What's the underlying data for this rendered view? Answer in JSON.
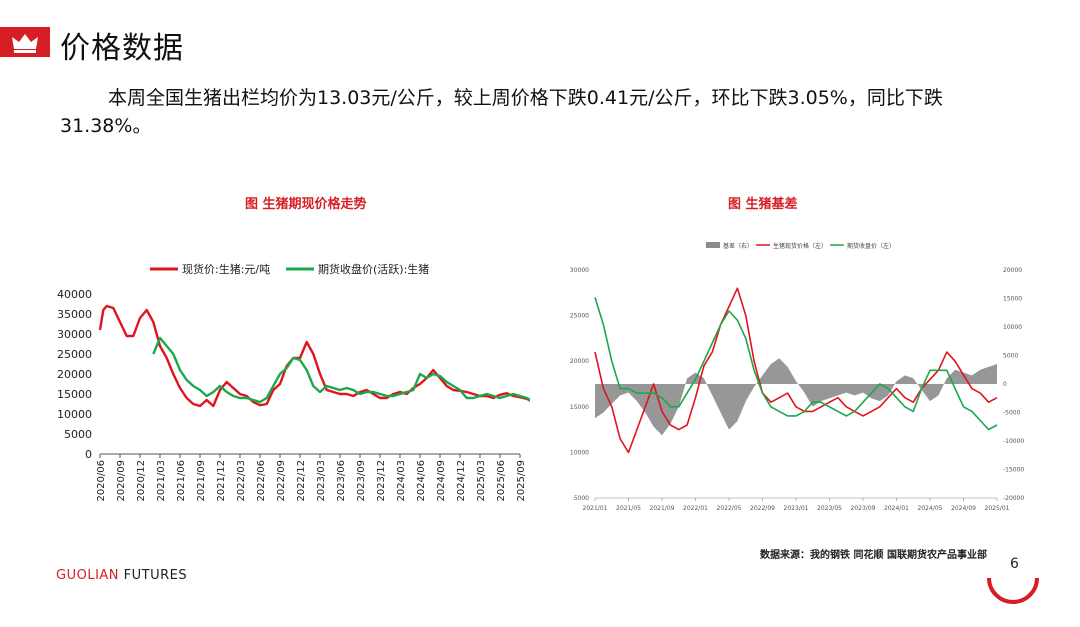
{
  "header": {
    "title": "价格数据"
  },
  "summary": "本周全国生猪出栏均价为13.03元/公斤，较上周价格下跌0.41元/公斤，环比下跌3.05%，同比下跌31.38%。",
  "footer": {
    "source": "数据来源：我的钢铁 同花顺 国联期货农产品事业部",
    "brand_main": "GUOLIAN",
    "brand_sub": " FUTURES",
    "page_number": "6"
  },
  "colors": {
    "accent": "#d51f25",
    "spot": "#e0141f",
    "futures": "#1aa84a",
    "basis": "#8c8c8c"
  },
  "chart_data": [
    {
      "type": "line",
      "caption": "图  生猪期现价格走势",
      "ylim": [
        0,
        40000
      ],
      "yticks": [
        0,
        5000,
        10000,
        15000,
        20000,
        25000,
        30000,
        35000,
        40000
      ],
      "xticks": [
        "2020/06",
        "2020/09",
        "2020/12",
        "2021/03",
        "2021/06",
        "2021/09",
        "2021/12",
        "2022/03",
        "2022/06",
        "2022/09",
        "2022/12",
        "2023/03",
        "2023/06",
        "2023/09",
        "2023/12",
        "2024/03",
        "2024/06",
        "2024/09",
        "2024/12",
        "2025/03",
        "2025/06",
        "2025/09"
      ],
      "legend_position": "top",
      "series": [
        {
          "name": "现货价:生猪:元/吨",
          "color": "#e0141f",
          "x": [
            0,
            0.5,
            1,
            2,
            3,
            4,
            5,
            6,
            7,
            8,
            9,
            10,
            11,
            12,
            13,
            14,
            15,
            16,
            17,
            18,
            19,
            20,
            21,
            22,
            23,
            24,
            25,
            26,
            27,
            28,
            29,
            30,
            31,
            32,
            33,
            34,
            35,
            36,
            37,
            38,
            39,
            40,
            41,
            42,
            43,
            44,
            45,
            46,
            47,
            48,
            49,
            50,
            51,
            52,
            53,
            54,
            55,
            56,
            57,
            58,
            59,
            60,
            61,
            62,
            63,
            64,
            65
          ],
          "y": [
            31000,
            36000,
            37000,
            36500,
            33000,
            29500,
            29500,
            34000,
            36000,
            33000,
            27000,
            24000,
            20000,
            16500,
            14000,
            12500,
            12000,
            13500,
            12000,
            16000,
            18000,
            16500,
            15000,
            14500,
            13000,
            12200,
            12500,
            16000,
            17500,
            22000,
            24000,
            24000,
            28000,
            25000,
            20000,
            16000,
            15500,
            15000,
            15000,
            14500,
            15500,
            16000,
            15000,
            14000,
            14000,
            15000,
            15500,
            15000,
            16500,
            17500,
            19000,
            21000,
            19000,
            17000,
            16000,
            15800,
            15500,
            15000,
            14500,
            14500,
            14000,
            14800,
            15200,
            14500,
            14200,
            13800,
            13000
          ]
        },
        {
          "name": "期货收盘价(活跃):生猪",
          "color": "#1aa84a",
          "x": [
            8,
            9,
            10,
            11,
            12,
            13,
            14,
            15,
            16,
            17,
            18,
            19,
            20,
            21,
            22,
            23,
            24,
            25,
            26,
            27,
            28,
            29,
            30,
            31,
            32,
            33,
            34,
            35,
            36,
            37,
            38,
            39,
            40,
            41,
            42,
            43,
            44,
            45,
            46,
            47,
            48,
            49,
            50,
            51,
            52,
            53,
            54,
            55,
            56,
            57,
            58,
            59,
            60,
            61,
            62,
            63,
            64,
            65
          ],
          "y": [
            25000,
            29000,
            27000,
            25000,
            21000,
            18500,
            17000,
            16000,
            14500,
            15500,
            17000,
            15500,
            14500,
            14000,
            14000,
            13500,
            13000,
            14000,
            17000,
            20000,
            21500,
            24000,
            23500,
            21000,
            17000,
            15500,
            17000,
            16500,
            16000,
            16500,
            16000,
            15000,
            15500,
            15500,
            15000,
            14500,
            14500,
            15000,
            15500,
            16000,
            20000,
            19000,
            20000,
            19500,
            18000,
            17000,
            16000,
            14000,
            14000,
            14500,
            15000,
            14500,
            14000,
            14500,
            15000,
            14500,
            14000,
            13200
          ]
        }
      ]
    },
    {
      "type": "line",
      "caption": "图  生猪基差",
      "y_left_lim": [
        5000,
        30000
      ],
      "y_left_ticks": [
        5000,
        10000,
        15000,
        20000,
        25000,
        30000
      ],
      "y_right_lim": [
        -20000,
        20000
      ],
      "y_right_ticks": [
        -20000,
        -15000,
        -10000,
        -5000,
        0,
        5000,
        10000,
        15000,
        20000
      ],
      "xticks": [
        "2021/01",
        "2021/05",
        "2021/09",
        "2022/01",
        "2022/05",
        "2022/09",
        "2023/01",
        "2023/05",
        "2023/09",
        "2024/01",
        "2024/05",
        "2024/09",
        "2025/01"
      ],
      "legend_position": "top",
      "series": [
        {
          "name": "基差（右）",
          "type": "area",
          "color": "#8c8c8c",
          "x": [
            0,
            1,
            2,
            3,
            4,
            5,
            6,
            7,
            8,
            9,
            10,
            11,
            12,
            13,
            14,
            15,
            16,
            17,
            18,
            19,
            20,
            21,
            22,
            23,
            24,
            25,
            26,
            27,
            28,
            29,
            30,
            31,
            32,
            33,
            34,
            35,
            36,
            37,
            38,
            39,
            40,
            41,
            42,
            43,
            44,
            45,
            46,
            47,
            48
          ],
          "y": [
            -6000,
            -5000,
            -3500,
            -2000,
            -1500,
            -3000,
            -5000,
            -7500,
            -9000,
            -7000,
            -4000,
            1000,
            2000,
            1000,
            -2000,
            -5000,
            -8000,
            -6500,
            -3000,
            -500,
            1500,
            3500,
            4500,
            3000,
            500,
            -1500,
            -4000,
            -3000,
            -2500,
            -2000,
            -1500,
            -2000,
            -1500,
            -2500,
            -3000,
            -2000,
            500,
            1500,
            1000,
            -1000,
            -3000,
            -2000,
            1000,
            2500,
            2000,
            1500,
            2500,
            3000,
            3500
          ]
        },
        {
          "name": "生猪现货价格（左）",
          "type": "line",
          "color": "#e0141f",
          "x": [
            0,
            1,
            2,
            3,
            4,
            5,
            6,
            7,
            8,
            9,
            10,
            11,
            12,
            13,
            14,
            15,
            16,
            17,
            18,
            19,
            20,
            21,
            22,
            23,
            24,
            25,
            26,
            27,
            28,
            29,
            30,
            31,
            32,
            33,
            34,
            35,
            36,
            37,
            38,
            39,
            40,
            41,
            42,
            43,
            44,
            45,
            46,
            47,
            48
          ],
          "y": [
            21000,
            17000,
            15000,
            11500,
            10000,
            12500,
            15000,
            17500,
            14500,
            13000,
            12500,
            13000,
            16000,
            19500,
            21000,
            24000,
            26000,
            28000,
            25000,
            20000,
            16500,
            15500,
            16000,
            16500,
            15000,
            14500,
            14500,
            15000,
            15500,
            16000,
            15000,
            14500,
            14000,
            14500,
            15000,
            16000,
            17000,
            16000,
            15500,
            17000,
            18000,
            19000,
            21000,
            20000,
            18500,
            17000,
            16500,
            15500,
            16000
          ]
        },
        {
          "name": "期货收盘价（左）",
          "type": "line",
          "color": "#1aa84a",
          "x": [
            0,
            1,
            2,
            3,
            4,
            5,
            6,
            7,
            8,
            9,
            10,
            11,
            12,
            13,
            14,
            15,
            16,
            17,
            18,
            19,
            20,
            21,
            22,
            23,
            24,
            25,
            26,
            27,
            28,
            29,
            30,
            31,
            32,
            33,
            34,
            35,
            36,
            37,
            38,
            39,
            40,
            41,
            42,
            43,
            44,
            45,
            46,
            47,
            48
          ],
          "y": [
            27000,
            24000,
            20000,
            17000,
            17000,
            16500,
            16500,
            16500,
            16000,
            15000,
            15000,
            16500,
            18000,
            20000,
            22000,
            24000,
            25500,
            24500,
            22500,
            19000,
            16500,
            15000,
            14500,
            14000,
            14000,
            14500,
            15500,
            15500,
            15000,
            14500,
            14000,
            14500,
            15500,
            16500,
            17500,
            17000,
            16000,
            15000,
            14500,
            17000,
            19000,
            19000,
            19000,
            17000,
            15000,
            14500,
            13500,
            12500,
            13000
          ]
        }
      ]
    }
  ]
}
